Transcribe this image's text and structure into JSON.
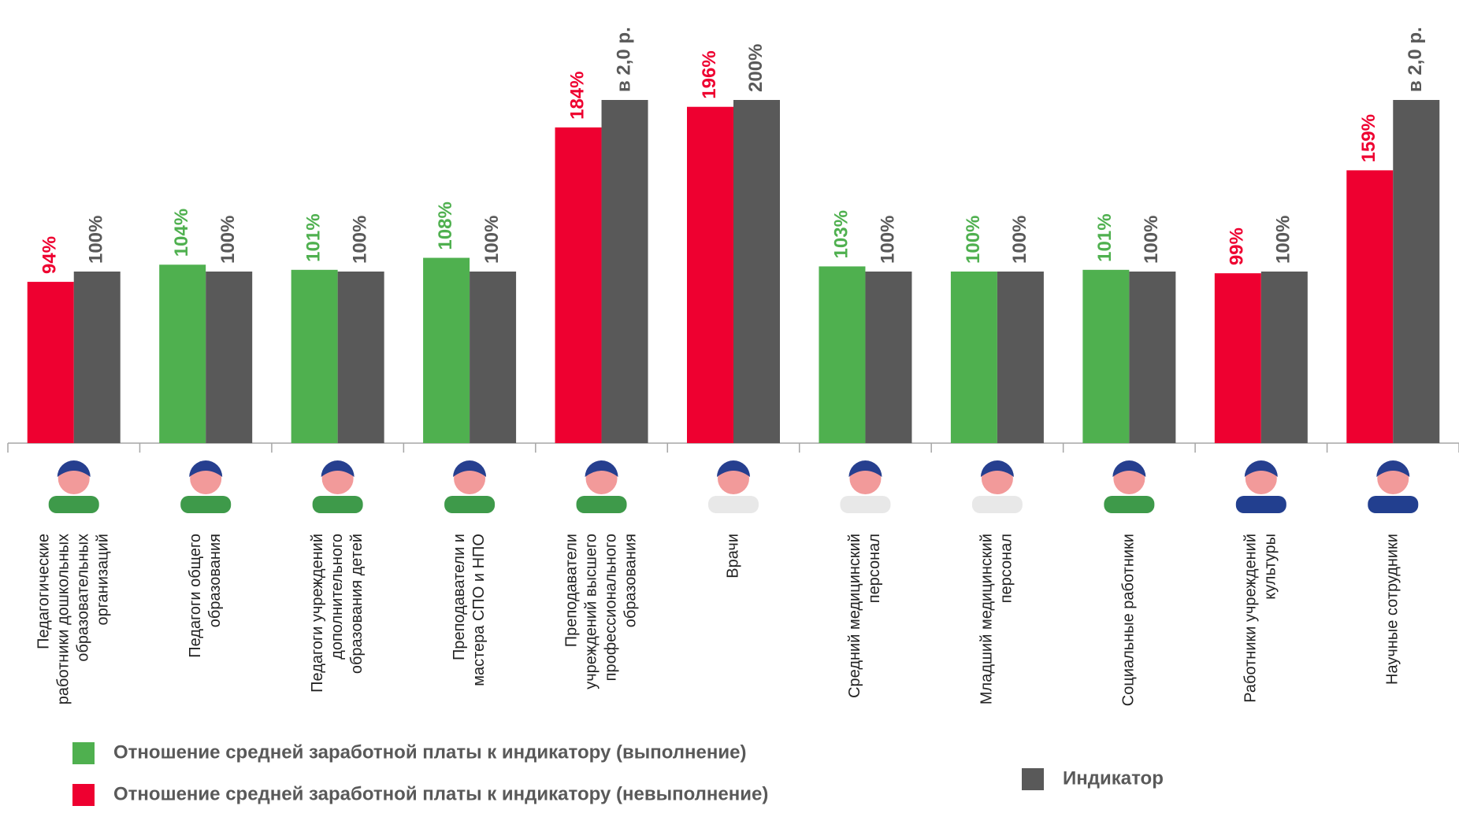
{
  "chart_data": {
    "type": "bar",
    "categories": [
      [
        "Педагогические",
        "работники дошкольных",
        "образовательных",
        "организаций"
      ],
      [
        "Педагоги общего",
        "образования"
      ],
      [
        "Педагоги учреждений",
        "дополнительного",
        "образования детей"
      ],
      [
        "Преподаватели и",
        "мастера СПО и НПО"
      ],
      [
        "Преподаватели",
        "учреждений высшего",
        "профессионального",
        "образования"
      ],
      [
        "Врачи"
      ],
      [
        "Средний медицинский",
        "персонал"
      ],
      [
        "Младший медицинский",
        "персонал"
      ],
      [
        "Социальные работники"
      ],
      [
        "Работники учреждений",
        "культуры"
      ],
      [
        "Научные сотрудники"
      ]
    ],
    "series": [
      {
        "name": "Отношение средней заработной платы к индикатору (выполнение)",
        "color": "#4fb04f",
        "values": [
          null,
          104,
          101,
          108,
          null,
          null,
          103,
          100,
          101,
          null,
          null
        ],
        "value_labels": [
          null,
          "104%",
          "101%",
          "108%",
          null,
          null,
          "103%",
          "100%",
          "101%",
          null,
          null
        ]
      },
      {
        "name": "Отношение средней заработной платы к индикатору (невыполнение)",
        "color": "#ee0030",
        "values": [
          94,
          null,
          null,
          null,
          184,
          196,
          null,
          null,
          null,
          99,
          159
        ],
        "value_labels": [
          "94%",
          null,
          null,
          null,
          "184%",
          "196%",
          null,
          null,
          null,
          "99%",
          "159%"
        ]
      },
      {
        "name": "Индикатор",
        "color": "#595959",
        "values": [
          100,
          100,
          100,
          100,
          200,
          200,
          100,
          100,
          100,
          100,
          200
        ],
        "value_labels": [
          "100%",
          "100%",
          "100%",
          "100%",
          "в 2,0 р.",
          "200%",
          "100%",
          "100%",
          "100%",
          "100%",
          "в 2,0 р."
        ]
      }
    ],
    "ylim": [
      0,
      250
    ],
    "legend": "bottom"
  }
}
